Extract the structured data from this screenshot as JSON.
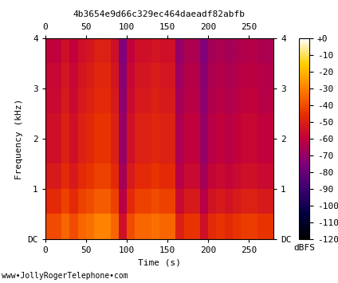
{
  "chart_data": {
    "type": "heatmap",
    "title": "4b3654e9d66c329ec464daeadf82abfb",
    "x_label": "Time (s)",
    "y_label": "Frequency (kHz)",
    "annotations": [
      "www•JollyRogerTelephone•com"
    ],
    "xlim": [
      0,
      280
    ],
    "ylim": [
      0,
      4
    ],
    "xticks": [
      0,
      50,
      100,
      150,
      200,
      250
    ],
    "yticks": [
      {
        "value": 0,
        "label": "DC"
      },
      1,
      2,
      3,
      4
    ],
    "x_edges": [
      0,
      10,
      20,
      30,
      40,
      50,
      60,
      70,
      80,
      90,
      100,
      110,
      120,
      130,
      140,
      150,
      160,
      170,
      180,
      190,
      200,
      210,
      220,
      230,
      240,
      250,
      260,
      270,
      280
    ],
    "y_edges": [
      0,
      0.5,
      1,
      1.5,
      2,
      2.5,
      3,
      3.5,
      4
    ],
    "cells": [
      [
        -40,
        -40,
        -35,
        -40,
        -35,
        -33,
        -30,
        -30,
        -35,
        -55,
        -40,
        -35,
        -35,
        -33,
        -35,
        -35,
        -50,
        -45,
        -45,
        -55,
        -47,
        -45,
        -47,
        -45,
        -43,
        -43,
        -45,
        -45
      ],
      [
        -47,
        -47,
        -42,
        -47,
        -42,
        -40,
        -37,
        -37,
        -42,
        -62,
        -47,
        -42,
        -42,
        -40,
        -42,
        -42,
        -57,
        -52,
        -52,
        -62,
        -54,
        -52,
        -54,
        -52,
        -50,
        -50,
        -52,
        -52
      ],
      [
        -52,
        -52,
        -47,
        -52,
        -47,
        -45,
        -42,
        -42,
        -47,
        -67,
        -52,
        -47,
        -47,
        -45,
        -47,
        -47,
        -62,
        -57,
        -57,
        -67,
        -59,
        -57,
        -59,
        -57,
        -55,
        -55,
        -57,
        -57
      ],
      [
        -55,
        -55,
        -50,
        -55,
        -50,
        -48,
        -45,
        -45,
        -50,
        -70,
        -55,
        -50,
        -50,
        -48,
        -50,
        -50,
        -65,
        -60,
        -60,
        -70,
        -62,
        -60,
        -62,
        -60,
        -58,
        -58,
        -60,
        -60
      ],
      [
        -55,
        -55,
        -50,
        -55,
        -50,
        -48,
        -45,
        -45,
        -50,
        -70,
        -55,
        -50,
        -50,
        -48,
        -50,
        -50,
        -65,
        -60,
        -60,
        -70,
        -62,
        -60,
        -62,
        -60,
        -58,
        -58,
        -60,
        -60
      ],
      [
        -57,
        -57,
        -52,
        -57,
        -52,
        -50,
        -47,
        -47,
        -52,
        -72,
        -57,
        -52,
        -52,
        -50,
        -52,
        -52,
        -67,
        -62,
        -62,
        -72,
        -64,
        -62,
        -64,
        -62,
        -60,
        -60,
        -62,
        -62
      ],
      [
        -58,
        -58,
        -53,
        -58,
        -53,
        -51,
        -48,
        -48,
        -53,
        -73,
        -58,
        -53,
        -53,
        -51,
        -53,
        -53,
        -68,
        -63,
        -63,
        -73,
        -65,
        -63,
        -65,
        -63,
        -61,
        -61,
        -63,
        -63
      ],
      [
        -60,
        -60,
        -55,
        -60,
        -55,
        -53,
        -50,
        -50,
        -55,
        -75,
        -60,
        -55,
        -55,
        -53,
        -55,
        -55,
        -70,
        -65,
        -65,
        -75,
        -67,
        -65,
        -67,
        -65,
        -63,
        -63,
        -65,
        -65
      ]
    ],
    "colorbar_range": [
      -120,
      0
    ],
    "colorbar_ticks": [
      {
        "value": 0,
        "label": "+0"
      },
      -10,
      -20,
      -30,
      -40,
      -50,
      -60,
      -70,
      -80,
      -90,
      -100,
      -110,
      -120
    ],
    "colorbar_label": "dBFS"
  }
}
